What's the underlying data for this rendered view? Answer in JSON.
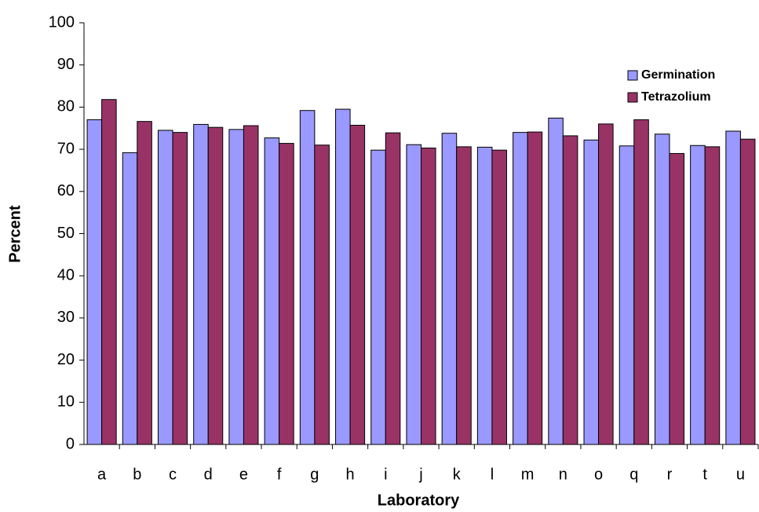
{
  "chart_data": {
    "type": "bar",
    "x_label": "Laboratory",
    "y_label": "Percent",
    "categories": [
      "a",
      "b",
      "c",
      "d",
      "e",
      "f",
      "g",
      "h",
      "i",
      "j",
      "k",
      "l",
      "m",
      "n",
      "o",
      "q",
      "r",
      "t",
      "u"
    ],
    "series": [
      {
        "name": "Germination",
        "color": "#9999ff",
        "values": [
          77.0,
          69.2,
          74.5,
          75.9,
          74.7,
          72.7,
          79.2,
          79.5,
          69.8,
          71.1,
          73.8,
          70.5,
          74.0,
          77.4,
          72.2,
          70.8,
          73.6,
          70.9,
          74.3
        ]
      },
      {
        "name": "Tetrazolium",
        "color": "#993366",
        "values": [
          81.8,
          76.6,
          74.0,
          75.2,
          75.6,
          71.4,
          71.0,
          75.7,
          73.9,
          70.3,
          70.6,
          69.8,
          74.1,
          73.2,
          76.0,
          77.0,
          69.0,
          70.6,
          72.4
        ]
      }
    ],
    "ylim": [
      0,
      100
    ],
    "yticks": [
      0,
      10,
      20,
      30,
      40,
      50,
      60,
      70,
      80,
      90,
      100
    ],
    "grid": false,
    "legend_position": "upper-right"
  }
}
